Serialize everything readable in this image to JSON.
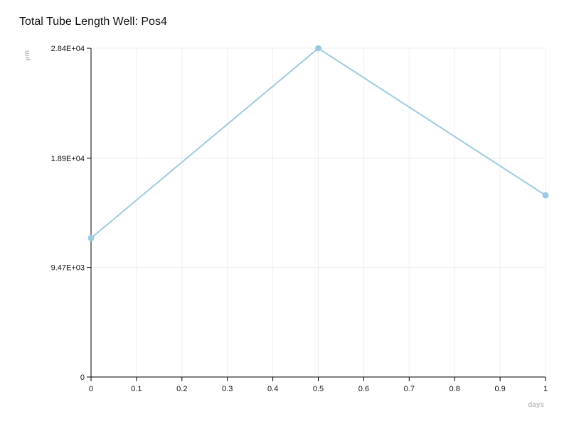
{
  "chart_data": {
    "type": "line",
    "title": "Total Tube Length Well: Pos4",
    "xlabel": "days",
    "ylabel": "µm",
    "xlim": [
      0,
      1
    ],
    "ylim": [
      0,
      28400
    ],
    "x_ticks": [
      0,
      0.1,
      0.2,
      0.3,
      0.4,
      0.5,
      0.6,
      0.7,
      0.8,
      0.9,
      1
    ],
    "x_tick_labels": [
      "0",
      "0.1",
      "0.2",
      "0.3",
      "0.4",
      "0.5",
      "0.6",
      "0.7",
      "0.8",
      "0.9",
      "1"
    ],
    "y_ticks": [
      0,
      9470,
      18900,
      28400
    ],
    "y_tick_labels": [
      "0",
      "9.47E+03",
      "1.89E+04",
      "2.84E+04"
    ],
    "grid": true,
    "legend": "none",
    "series": [
      {
        "color": "#9ecae1",
        "x": [
          0,
          0.5,
          1
        ],
        "y": [
          12000,
          28400,
          15700
        ]
      }
    ]
  }
}
